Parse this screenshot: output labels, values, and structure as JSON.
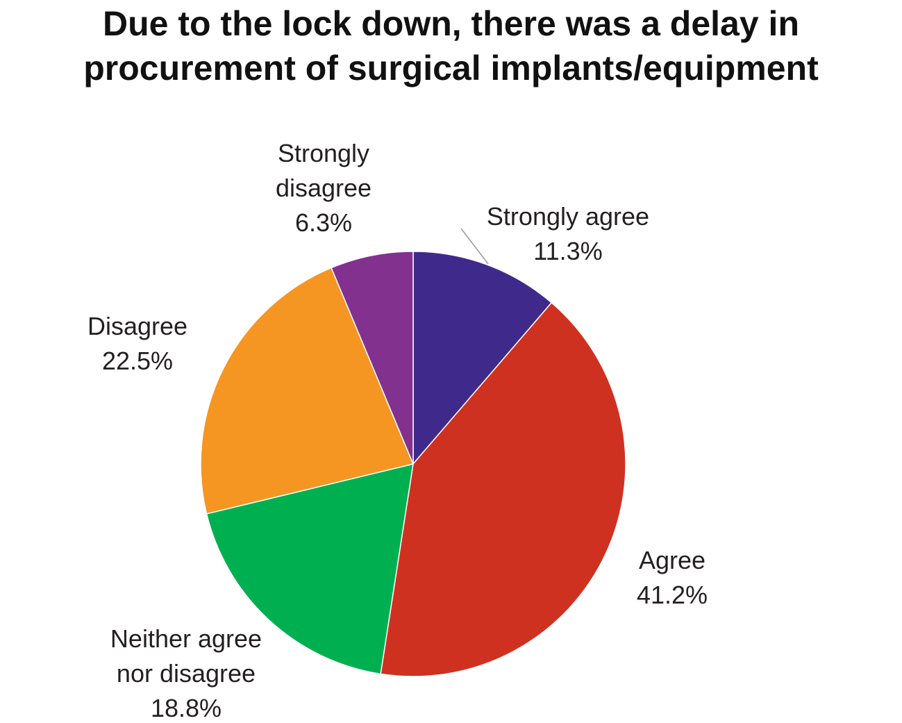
{
  "title": {
    "line1": "Due to the lock down, there was a delay in",
    "line2": "procurement of surgical implants/equipment"
  },
  "chart_data": {
    "type": "pie",
    "title": "Due to the lock down, there was a delay in procurement of surgical implants/equipment",
    "start_angle_deg": 0,
    "direction": "clockwise",
    "slices": [
      {
        "name": "Strongly agree",
        "label_lines": [
          "Strongly agree",
          "11.3%"
        ],
        "value": 11.3,
        "color": "#3f2a8c"
      },
      {
        "name": "Agree",
        "label_lines": [
          "Agree",
          "41.2%"
        ],
        "value": 41.2,
        "color": "#cf3121"
      },
      {
        "name": "Neither agree nor disagree",
        "label_lines": [
          "Neither agree",
          "nor disagree",
          "18.8%"
        ],
        "value": 18.8,
        "color": "#00b050"
      },
      {
        "name": "Disagree",
        "label_lines": [
          "Disagree",
          "22.5%"
        ],
        "value": 22.5,
        "color": "#f59622"
      },
      {
        "name": "Strongly disagree",
        "label_lines": [
          "Strongly",
          "disagree",
          "6.3%"
        ],
        "value": 6.3,
        "color": "#82318f"
      }
    ]
  }
}
